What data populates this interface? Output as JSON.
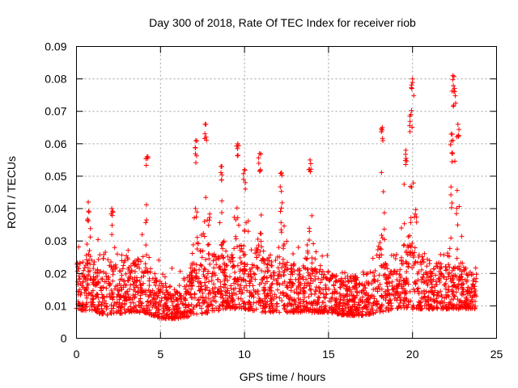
{
  "chart_data": {
    "type": "scatter",
    "title": "Day 300 of 2018, Rate Of TEC Index for receiver riob",
    "xlabel": "GPS time / hours",
    "ylabel": "ROTI / TECUs",
    "xlim": [
      0,
      25
    ],
    "ylim": [
      0,
      0.09
    ],
    "xticks": [
      0,
      5,
      10,
      15,
      20,
      25
    ],
    "xtick_labels": [
      "0",
      "5",
      "10",
      "15",
      "20",
      "25"
    ],
    "yticks": [
      0,
      0.01,
      0.02,
      0.03,
      0.04,
      0.05,
      0.06,
      0.07,
      0.08,
      0.09
    ],
    "ytick_labels": [
      "0",
      "0.01",
      "0.02",
      "0.03",
      "0.04",
      "0.05",
      "0.06",
      "0.07",
      "0.08",
      "0.09"
    ],
    "grid": true,
    "marker": "+",
    "color": "#ff0000",
    "x_data_range": [
      0,
      23.8
    ],
    "series": [
      {
        "name": "ROTI",
        "baseline_envelope": [
          {
            "x": 0,
            "low": 0.009,
            "high": 0.025
          },
          {
            "x": 1,
            "low": 0.008,
            "high": 0.024
          },
          {
            "x": 2,
            "low": 0.007,
            "high": 0.027
          },
          {
            "x": 3,
            "low": 0.008,
            "high": 0.026
          },
          {
            "x": 4,
            "low": 0.008,
            "high": 0.024
          },
          {
            "x": 5,
            "low": 0.006,
            "high": 0.018
          },
          {
            "x": 6,
            "low": 0.006,
            "high": 0.016
          },
          {
            "x": 7,
            "low": 0.007,
            "high": 0.022
          },
          {
            "x": 8,
            "low": 0.008,
            "high": 0.027
          },
          {
            "x": 9,
            "low": 0.009,
            "high": 0.028
          },
          {
            "x": 10,
            "low": 0.009,
            "high": 0.027
          },
          {
            "x": 11,
            "low": 0.008,
            "high": 0.026
          },
          {
            "x": 12,
            "low": 0.008,
            "high": 0.024
          },
          {
            "x": 13,
            "low": 0.008,
            "high": 0.023
          },
          {
            "x": 14,
            "low": 0.008,
            "high": 0.022
          },
          {
            "x": 15,
            "low": 0.008,
            "high": 0.021
          },
          {
            "x": 16,
            "low": 0.007,
            "high": 0.019
          },
          {
            "x": 17,
            "low": 0.007,
            "high": 0.02
          },
          {
            "x": 18,
            "low": 0.008,
            "high": 0.022
          },
          {
            "x": 19,
            "low": 0.009,
            "high": 0.026
          },
          {
            "x": 20,
            "low": 0.009,
            "high": 0.027
          },
          {
            "x": 21,
            "low": 0.009,
            "high": 0.024
          },
          {
            "x": 22,
            "low": 0.009,
            "high": 0.023
          },
          {
            "x": 23,
            "low": 0.009,
            "high": 0.022
          },
          {
            "x": 23.8,
            "low": 0.009,
            "high": 0.022
          }
        ],
        "peaks": [
          {
            "x": 0.7,
            "y": 0.042
          },
          {
            "x": 2.1,
            "y": 0.04
          },
          {
            "x": 4.2,
            "y": 0.056
          },
          {
            "x": 7.1,
            "y": 0.061
          },
          {
            "x": 7.7,
            "y": 0.066
          },
          {
            "x": 8.6,
            "y": 0.053
          },
          {
            "x": 9.6,
            "y": 0.06
          },
          {
            "x": 10.0,
            "y": 0.052
          },
          {
            "x": 10.9,
            "y": 0.057
          },
          {
            "x": 12.2,
            "y": 0.051
          },
          {
            "x": 13.9,
            "y": 0.055
          },
          {
            "x": 18.2,
            "y": 0.065
          },
          {
            "x": 19.6,
            "y": 0.058
          },
          {
            "x": 19.9,
            "y": 0.069
          },
          {
            "x": 20.0,
            "y": 0.08
          },
          {
            "x": 22.3,
            "y": 0.063
          },
          {
            "x": 22.4,
            "y": 0.081
          },
          {
            "x": 22.5,
            "y": 0.077
          },
          {
            "x": 22.7,
            "y": 0.066
          }
        ]
      }
    ]
  }
}
